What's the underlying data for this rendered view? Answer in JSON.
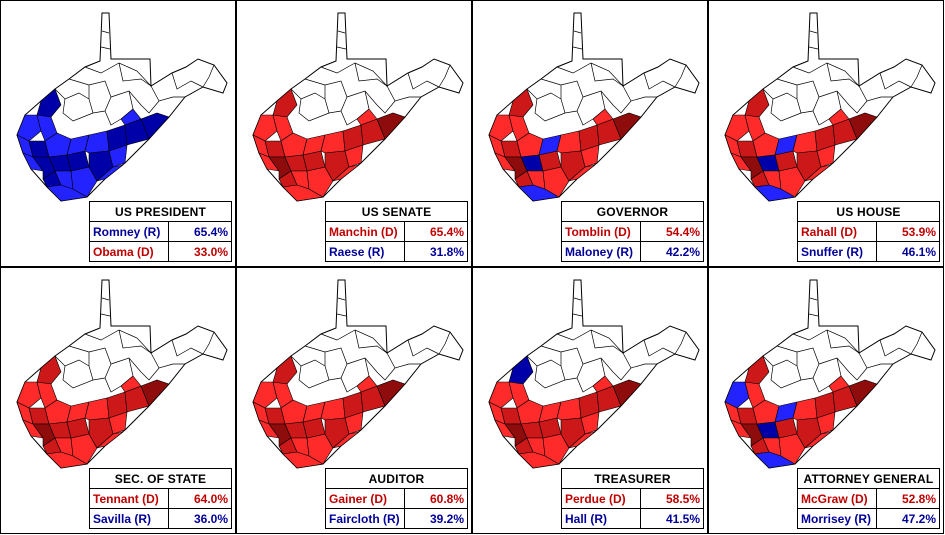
{
  "colors": {
    "dem_light": "#ff2a2a",
    "dem_medium": "#cc1818",
    "dem_dark": "#8e0c0c",
    "rep_light": "#2323ff",
    "rep_dark": "#0000a8",
    "undecided": "#ffffff",
    "outline": "#000000"
  },
  "races": [
    {
      "title": "US PRESIDENT",
      "map_palette": "rep",
      "blue_counties": [],
      "candidates": [
        {
          "name": "Romney (R)",
          "pct": "65.4%",
          "party": "R"
        },
        {
          "name": "Obama (D)",
          "pct": "33.0%",
          "party": "D"
        }
      ]
    },
    {
      "title": "US SENATE",
      "map_palette": "dem",
      "blue_counties": [],
      "candidates": [
        {
          "name": "Manchin (D)",
          "pct": "65.4%",
          "party": "D"
        },
        {
          "name": "Raese (R)",
          "pct": "31.8%",
          "party": "R"
        }
      ]
    },
    {
      "title": "GOVERNOR",
      "map_palette": "dem",
      "blue_counties": [
        8,
        11,
        14
      ],
      "candidates": [
        {
          "name": "Tomblin (D)",
          "pct": "54.4%",
          "party": "D"
        },
        {
          "name": "Maloney (R)",
          "pct": "42.2%",
          "party": "R"
        }
      ]
    },
    {
      "title": "US HOUSE",
      "map_palette": "dem",
      "blue_counties": [
        8,
        11,
        14
      ],
      "candidates": [
        {
          "name": "Rahall (D)",
          "pct": "53.9%",
          "party": "D"
        },
        {
          "name": "Snuffer (R)",
          "pct": "46.1%",
          "party": "R"
        }
      ]
    },
    {
      "title": "SEC. OF STATE",
      "map_palette": "dem",
      "blue_counties": [],
      "candidates": [
        {
          "name": "Tennant (D)",
          "pct": "64.0%",
          "party": "D"
        },
        {
          "name": "Savilla (R)",
          "pct": "36.0%",
          "party": "R"
        }
      ]
    },
    {
      "title": "AUDITOR",
      "map_palette": "dem",
      "blue_counties": [],
      "candidates": [
        {
          "name": "Gainer (D)",
          "pct": "60.8%",
          "party": "D"
        },
        {
          "name": "Faircloth (R)",
          "pct": "39.2%",
          "party": "R"
        }
      ]
    },
    {
      "title": "TREASURER",
      "map_palette": "dem",
      "blue_counties": [
        0
      ],
      "candidates": [
        {
          "name": "Perdue (D)",
          "pct": "58.5%",
          "party": "D"
        },
        {
          "name": "Hall (R)",
          "pct": "41.5%",
          "party": "R"
        }
      ]
    },
    {
      "title": "ATTORNEY GENERAL",
      "map_palette": "dem",
      "blue_counties": [
        1,
        8,
        11,
        14
      ],
      "candidates": [
        {
          "name": "McGraw (D)",
          "pct": "52.8%",
          "party": "D"
        },
        {
          "name": "Morrisey (R)",
          "pct": "47.2%",
          "party": "R"
        }
      ]
    }
  ]
}
